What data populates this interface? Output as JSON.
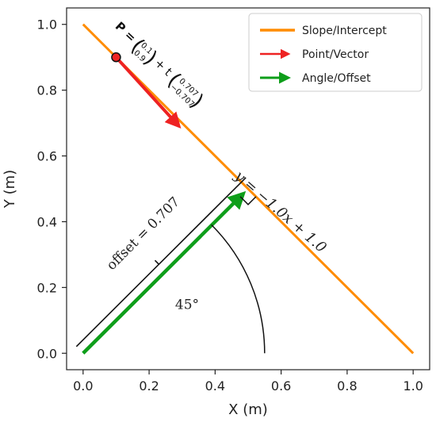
{
  "chart_data": {
    "type": "line",
    "xlabel": "X (m)",
    "ylabel": "Y (m)",
    "xlim": [
      -0.05,
      1.05
    ],
    "ylim": [
      -0.05,
      1.05
    ],
    "x_ticks": [
      0.0,
      0.2,
      0.4,
      0.6,
      0.8,
      1.0
    ],
    "y_ticks": [
      0.0,
      0.2,
      0.4,
      0.6,
      0.8,
      1.0
    ],
    "x_tick_labels": [
      "0.0",
      "0.2",
      "0.4",
      "0.6",
      "0.8",
      "1.0"
    ],
    "y_tick_labels": [
      "0.0",
      "0.2",
      "0.4",
      "0.6",
      "0.8",
      "1.0"
    ],
    "grid": false,
    "legend_position": "top-right",
    "series": [
      {
        "name": "Slope/Intercept",
        "kind": "line",
        "color": "#ff8c00",
        "x": [
          0.0,
          1.0
        ],
        "y": [
          1.0,
          0.0
        ]
      },
      {
        "name": "Point/Vector",
        "kind": "arrow",
        "color": "#ee2222",
        "x": [
          0.1,
          0.3
        ],
        "y": [
          0.9,
          0.7
        ]
      },
      {
        "name": "Angle/Offset",
        "kind": "arrow",
        "color": "#0e9e1a",
        "x": [
          0.0,
          0.5
        ],
        "y": [
          0.0,
          0.5
        ]
      }
    ],
    "point": {
      "x": 0.1,
      "y": 0.9,
      "color": "#ee2222"
    },
    "annotations": {
      "parametric_prefix": "P = ",
      "p_vec": [
        "0.1",
        "0.9"
      ],
      "plus_t": "+ t",
      "dir_vec": [
        "0.707",
        "−0.707"
      ],
      "line_equation": "y = −1.0x + 1.0",
      "offset_label": "offset = 0.707",
      "angle_label": "45°"
    }
  }
}
